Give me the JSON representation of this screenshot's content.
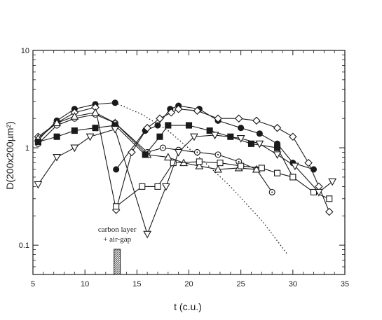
{
  "chart_data": {
    "type": "scatter",
    "xlabel": "t (c.u.)",
    "ylabel": "D(200x200µm²)",
    "xlim": [
      5,
      35
    ],
    "ylim": [
      0.05,
      10
    ],
    "y_scale": "log",
    "x_ticks": [
      5,
      10,
      15,
      20,
      25,
      30,
      35
    ],
    "y_ticks": [
      {
        "value": 0.1,
        "label": "0.1"
      },
      {
        "value": 1,
        "label": "1"
      },
      {
        "value": 10,
        "label": "10"
      }
    ],
    "grid": false,
    "annotation": {
      "lines": [
        "carbon layer",
        "+ air-gap"
      ],
      "x_range": [
        12.8,
        13.4
      ]
    },
    "series": [
      {
        "marker": "filled-circle",
        "line": "solid",
        "points": [
          [
            5.5,
            1.2
          ],
          [
            7.3,
            1.9
          ],
          [
            9.0,
            2.5
          ],
          [
            11.0,
            2.8
          ],
          [
            12.9,
            2.9
          ]
        ]
      },
      {
        "marker": "dotted",
        "line": "dotted",
        "points": [
          [
            12.9,
            2.9
          ],
          [
            15.5,
            2.2
          ],
          [
            18.0,
            1.5
          ],
          [
            21.0,
            0.8
          ],
          [
            24.0,
            0.4
          ],
          [
            27.0,
            0.18
          ],
          [
            29.5,
            0.08
          ]
        ]
      },
      {
        "marker": "filled-circle",
        "line": "solid",
        "points": [
          [
            13.0,
            0.6
          ],
          [
            15.8,
            1.5
          ],
          [
            17.0,
            1.7
          ],
          [
            18.2,
            2.5
          ],
          [
            19.0,
            2.7
          ],
          [
            21.0,
            2.5
          ],
          [
            22.8,
            1.9
          ],
          [
            25.0,
            1.6
          ],
          [
            26.8,
            1.4
          ],
          [
            28.5,
            1.1
          ],
          [
            30.0,
            0.7
          ],
          [
            32.0,
            0.6
          ]
        ]
      },
      {
        "marker": "diamond",
        "line": "solid",
        "points": [
          [
            5.5,
            1.3
          ],
          [
            7.3,
            1.8
          ],
          [
            9.0,
            2.3
          ],
          [
            11.0,
            2.6
          ],
          [
            13.0,
            0.23
          ],
          [
            14.5,
            0.9
          ],
          [
            16.0,
            1.6
          ],
          [
            17.2,
            2.0
          ],
          [
            18.3,
            2.3
          ],
          [
            19.0,
            2.5
          ],
          [
            20.8,
            2.4
          ],
          [
            22.8,
            2.0
          ],
          [
            24.8,
            2.0
          ],
          [
            26.5,
            1.9
          ],
          [
            28.5,
            1.6
          ],
          [
            30.0,
            1.3
          ],
          [
            31.5,
            0.7
          ],
          [
            32.5,
            0.4
          ],
          [
            33.5,
            0.22
          ]
        ]
      },
      {
        "marker": "open-circle",
        "line": "solid",
        "points": [
          [
            5.5,
            1.1
          ],
          [
            7.3,
            1.7
          ],
          [
            9.0,
            2.0
          ],
          [
            11.0,
            2.2
          ],
          [
            12.9,
            1.8
          ],
          [
            16.0,
            0.9
          ],
          [
            17.5,
            1.0
          ],
          [
            19.0,
            0.95
          ],
          [
            20.8,
            0.9
          ],
          [
            22.8,
            0.85
          ],
          [
            24.8,
            0.72
          ],
          [
            26.5,
            0.6
          ],
          [
            28.0,
            0.35
          ]
        ]
      },
      {
        "marker": "open-triangle-up",
        "line": "solid",
        "points": [
          [
            5.5,
            1.25
          ],
          [
            7.3,
            1.8
          ],
          [
            9.0,
            2.1
          ],
          [
            11.0,
            2.3
          ],
          [
            12.9,
            1.8
          ],
          [
            16.0,
            0.85
          ],
          [
            18.0,
            0.8
          ],
          [
            19.5,
            0.7
          ],
          [
            21.0,
            0.65
          ],
          [
            22.8,
            0.6
          ],
          [
            24.8,
            0.62
          ],
          [
            26.5,
            0.6
          ]
        ]
      },
      {
        "marker": "filled-square",
        "line": "solid",
        "points": [
          [
            5.5,
            1.15
          ],
          [
            7.3,
            1.3
          ],
          [
            9.0,
            1.5
          ],
          [
            11.0,
            1.6
          ],
          [
            12.9,
            1.7
          ],
          [
            15.8,
            0.85
          ],
          [
            17.2,
            1.3
          ],
          [
            18.0,
            1.7
          ],
          [
            20.0,
            1.7
          ],
          [
            22.0,
            1.5
          ],
          [
            24.0,
            1.3
          ],
          [
            26.0,
            1.1
          ],
          [
            28.5,
            1.0
          ],
          [
            30.0,
            0.5
          ]
        ]
      },
      {
        "marker": "open-square",
        "line": "solid",
        "points": [
          [
            13.0,
            0.25
          ],
          [
            15.5,
            0.4
          ],
          [
            17.0,
            0.4
          ],
          [
            18.5,
            0.7
          ],
          [
            21.0,
            0.72
          ],
          [
            23.0,
            0.7
          ],
          [
            25.0,
            0.65
          ],
          [
            27.0,
            0.62
          ],
          [
            28.5,
            0.55
          ],
          [
            30.0,
            0.5
          ],
          [
            32.0,
            0.35
          ],
          [
            33.5,
            0.3
          ]
        ]
      },
      {
        "marker": "open-triangle-down",
        "line": "solid",
        "points": [
          [
            5.5,
            0.42
          ],
          [
            7.3,
            0.8
          ],
          [
            9.0,
            1.0
          ],
          [
            10.5,
            1.3
          ],
          [
            12.9,
            1.55
          ],
          [
            16.0,
            0.13
          ],
          [
            17.8,
            0.4
          ],
          [
            19.0,
            0.9
          ],
          [
            20.5,
            1.3
          ],
          [
            22.5,
            1.35
          ],
          [
            25.0,
            1.25
          ],
          [
            26.8,
            1.1
          ],
          [
            28.5,
            0.85
          ],
          [
            30.2,
            0.65
          ],
          [
            32.5,
            0.35
          ],
          [
            33.8,
            0.45
          ]
        ]
      }
    ]
  }
}
